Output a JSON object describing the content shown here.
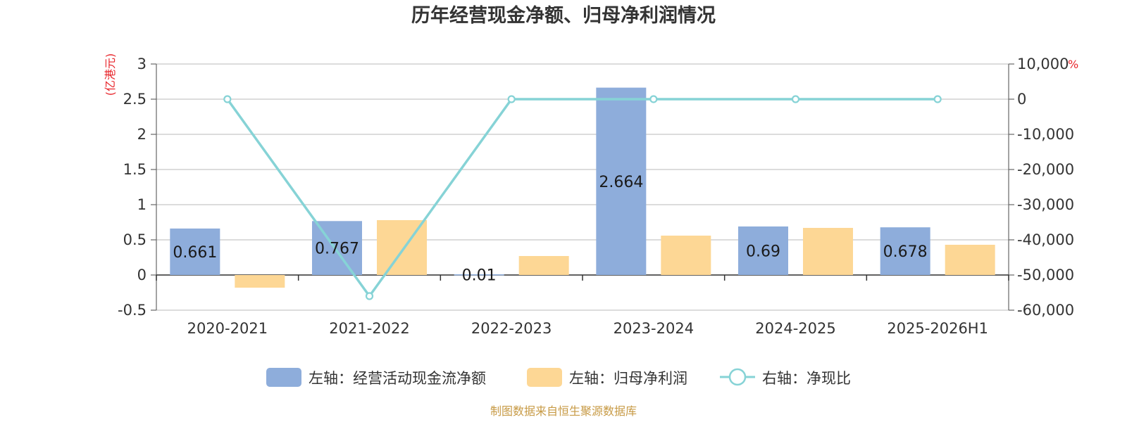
{
  "chart_data": {
    "type": "bar",
    "title": "历年经营现金净额、归母净利润情况",
    "categories": [
      "2020-2021",
      "2021-2022",
      "2022-2023",
      "2023-2024",
      "2024-2025",
      "2025-2026H1"
    ],
    "series": [
      {
        "name": "左轴：经营活动现金流净额",
        "type": "bar",
        "axis": "left",
        "color": "#8eaddb",
        "values": [
          0.661,
          0.767,
          0.01,
          2.664,
          0.69,
          0.678
        ],
        "labels_shown": true
      },
      {
        "name": "左轴：归母净利润",
        "type": "bar",
        "axis": "left",
        "color": "#fdd795",
        "values": [
          -0.18,
          0.78,
          0.27,
          0.56,
          0.67,
          0.43
        ],
        "labels_shown": false
      },
      {
        "name": "右轴：净现比",
        "type": "line",
        "axis": "right",
        "color": "#86d3d6",
        "values": [
          -3.7,
          -56000,
          0.04,
          4.76,
          1.03,
          1.58
        ],
        "labels_shown": false
      }
    ],
    "left_axis": {
      "unit": "(亿港元)",
      "ylim": [
        -0.5,
        3
      ],
      "ticks": [
        3,
        2.5,
        2,
        1.5,
        1,
        0.5,
        0,
        -0.5
      ],
      "tick_labels": [
        "3",
        "2.5",
        "2",
        "1.5",
        "1",
        "0.5",
        "0",
        "-0.5"
      ]
    },
    "right_axis": {
      "unit": "%",
      "ylim": [
        -60000,
        10000
      ],
      "ticks": [
        10000,
        0,
        -10000,
        -20000,
        -30000,
        -40000,
        -50000,
        -60000
      ],
      "tick_labels": [
        "10,000",
        "0",
        "-10,000",
        "-20,000",
        "-30,000",
        "-40,000",
        "-50,000",
        "-60,000"
      ]
    },
    "grid": true,
    "legend_position": "bottom"
  },
  "source": "制图数据来自恒生聚源数据库"
}
